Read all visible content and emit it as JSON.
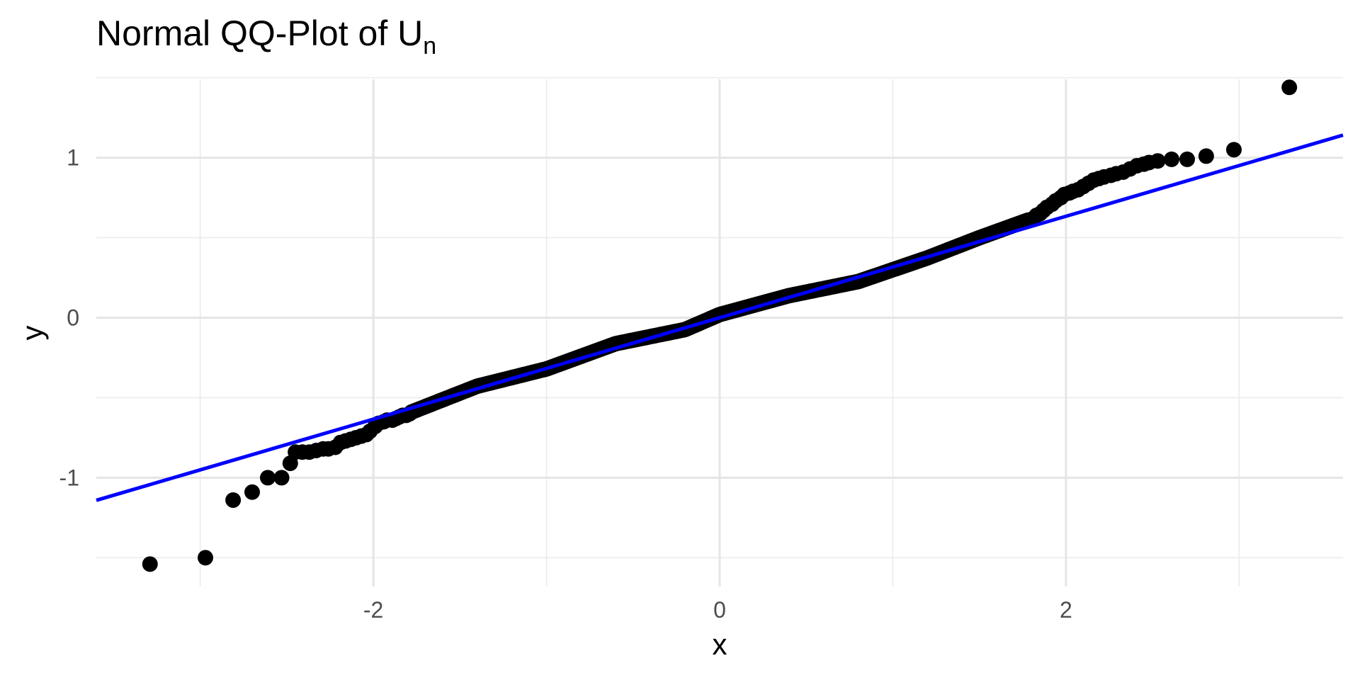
{
  "chart_data": {
    "type": "scatter",
    "title": "Normal QQ-Plot of U",
    "title_subscript": "n",
    "xlabel": "x",
    "ylabel": "y",
    "xlim": [
      -3.6,
      3.6
    ],
    "ylim": [
      -1.68,
      1.49
    ],
    "x_ticks": [
      -2,
      0,
      2
    ],
    "x_tick_labels": [
      "-2",
      "0",
      "2"
    ],
    "y_ticks": [
      -1,
      0,
      1
    ],
    "y_tick_labels": [
      "-1",
      "0",
      "1"
    ],
    "x_minor_ticks": [
      -3,
      -1,
      1,
      3
    ],
    "y_minor_ticks": [
      -1.5,
      -0.5,
      0.5,
      1.5
    ],
    "grid": true,
    "reference_line": {
      "slope": 0.317,
      "intercept": 0.0,
      "color": "#0000ff"
    },
    "point_color": "#000000",
    "points_head": [
      [
        -3.29,
        -1.54
      ],
      [
        -2.97,
        -1.5
      ],
      [
        -2.81,
        -1.14
      ],
      [
        -2.7,
        -1.09
      ],
      [
        -2.61,
        -1.0
      ],
      [
        -2.53,
        -1.0
      ],
      [
        -2.48,
        -0.91
      ],
      [
        -2.45,
        -0.84
      ],
      [
        -2.41,
        -0.84
      ],
      [
        -2.37,
        -0.84
      ],
      [
        -2.33,
        -0.83
      ],
      [
        -2.29,
        -0.82
      ],
      [
        -2.26,
        -0.82
      ],
      [
        -2.22,
        -0.81
      ],
      [
        -2.19,
        -0.78
      ],
      [
        -2.16,
        -0.77
      ],
      [
        -2.13,
        -0.76
      ],
      [
        -2.1,
        -0.75
      ],
      [
        -2.07,
        -0.74
      ],
      [
        -2.04,
        -0.73
      ],
      [
        -2.02,
        -0.71
      ],
      [
        -1.99,
        -0.68
      ],
      [
        -1.97,
        -0.66
      ],
      [
        -1.94,
        -0.65
      ],
      [
        -1.92,
        -0.64
      ],
      [
        -1.89,
        -0.64
      ],
      [
        -1.87,
        -0.63
      ],
      [
        -1.85,
        -0.62
      ],
      [
        -1.83,
        -0.61
      ],
      [
        -1.81,
        -0.61
      ],
      [
        -1.79,
        -0.6
      ]
    ],
    "points_tail": [
      [
        1.79,
        0.61
      ],
      [
        1.81,
        0.62
      ],
      [
        1.83,
        0.64
      ],
      [
        1.85,
        0.65
      ],
      [
        1.87,
        0.67
      ],
      [
        1.89,
        0.69
      ],
      [
        1.92,
        0.71
      ],
      [
        1.94,
        0.73
      ],
      [
        1.97,
        0.75
      ],
      [
        1.99,
        0.77
      ],
      [
        2.02,
        0.78
      ],
      [
        2.04,
        0.79
      ],
      [
        2.07,
        0.8
      ],
      [
        2.1,
        0.82
      ],
      [
        2.13,
        0.84
      ],
      [
        2.16,
        0.86
      ],
      [
        2.19,
        0.87
      ],
      [
        2.22,
        0.88
      ],
      [
        2.26,
        0.89
      ],
      [
        2.29,
        0.9
      ],
      [
        2.33,
        0.91
      ],
      [
        2.37,
        0.93
      ],
      [
        2.41,
        0.95
      ],
      [
        2.45,
        0.96
      ],
      [
        2.48,
        0.97
      ],
      [
        2.53,
        0.98
      ],
      [
        2.61,
        0.99
      ],
      [
        2.7,
        0.99
      ],
      [
        2.81,
        1.01
      ],
      [
        2.97,
        1.05
      ],
      [
        3.29,
        1.44
      ]
    ],
    "body": {
      "x_range": [
        -1.78,
        1.78
      ],
      "slope": 0.32,
      "intercept": 0.0,
      "wiggle": [
        [
          -1.78,
          -0.02
        ],
        [
          -1.4,
          0.02
        ],
        [
          -1.0,
          0.0
        ],
        [
          -0.6,
          0.03
        ],
        [
          -0.2,
          -0.01
        ],
        [
          0.0,
          0.02
        ],
        [
          0.4,
          0.01
        ],
        [
          0.8,
          -0.03
        ],
        [
          1.2,
          -0.01
        ],
        [
          1.5,
          0.02
        ],
        [
          1.78,
          0.04
        ]
      ],
      "count": 300
    }
  }
}
